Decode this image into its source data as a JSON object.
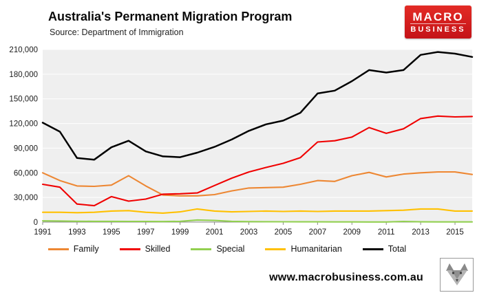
{
  "header": {
    "title": "Australia's Permanent Migration Program",
    "source": "Source: Department of Immigration",
    "logo_line1": "MACRO",
    "logo_line2": "BUSINESS",
    "logo_color": "#d71a1e"
  },
  "footer": {
    "website": "www.macrobusiness.com.au",
    "logo_icon": "wolf-icon"
  },
  "chart_data": {
    "type": "line",
    "title": "Australia's Permanent Migration Program",
    "subtitle": "Source: Department of Immigration",
    "x": [
      1991,
      1992,
      1993,
      1994,
      1995,
      1996,
      1997,
      1998,
      1999,
      2000,
      2001,
      2002,
      2003,
      2004,
      2005,
      2006,
      2007,
      2008,
      2009,
      2010,
      2011,
      2012,
      2013,
      2014,
      2015,
      2016
    ],
    "x_tick_labels": [
      "1991",
      "1993",
      "1995",
      "1997",
      "1999",
      "2001",
      "2003",
      "2005",
      "2007",
      "2009",
      "2011",
      "2013",
      "2015"
    ],
    "ylim": [
      0,
      210000
    ],
    "y_step": 30000,
    "y_tick_labels": [
      "0",
      "30,000",
      "60,000",
      "90,000",
      "120,000",
      "150,000",
      "180,000",
      "210,000"
    ],
    "grid": "horizontal-only",
    "plot_bg": "#efefef",
    "grid_color": "#ffffff",
    "legend_position": "bottom",
    "series": [
      {
        "name": "Family",
        "color": "#ed8733",
        "values": [
          60000,
          50500,
          44000,
          43500,
          45000,
          56500,
          44000,
          33000,
          32000,
          32000,
          33500,
          38000,
          41500,
          42000,
          42500,
          46000,
          50500,
          49500,
          56500,
          60500,
          55000,
          58500,
          60000,
          61000,
          61000,
          58000
        ]
      },
      {
        "name": "Skilled",
        "color": "#f00000",
        "values": [
          46000,
          42500,
          22000,
          20000,
          31000,
          25500,
          28000,
          34000,
          34500,
          35500,
          44500,
          53500,
          61000,
          66500,
          71500,
          78500,
          97500,
          99000,
          103500,
          115000,
          108000,
          113500,
          126000,
          129000,
          128000,
          128500
        ]
      },
      {
        "name": "Special",
        "color": "#92d050",
        "values": [
          1500,
          1300,
          1000,
          900,
          900,
          800,
          800,
          700,
          900,
          2600,
          2000,
          900,
          600,
          500,
          400,
          350,
          300,
          250,
          220,
          200,
          180,
          800,
          300,
          250,
          250,
          250
        ]
      },
      {
        "name": "Humanitarian",
        "color": "#ffc000",
        "values": [
          12000,
          12000,
          11500,
          12000,
          13500,
          14000,
          12000,
          11000,
          12500,
          16000,
          13500,
          12500,
          13000,
          13500,
          13000,
          13500,
          13000,
          13500,
          13500,
          13500,
          14000,
          14500,
          16000,
          16000,
          13500,
          13500
        ]
      },
      {
        "name": "Total",
        "color": "#000000",
        "values": [
          121000,
          110000,
          78000,
          76000,
          91000,
          99000,
          86000,
          80000,
          79000,
          84500,
          91500,
          100500,
          111000,
          119000,
          123500,
          133000,
          156500,
          160000,
          171500,
          185000,
          182000,
          185000,
          203500,
          207000,
          205000,
          201000
        ]
      }
    ]
  }
}
